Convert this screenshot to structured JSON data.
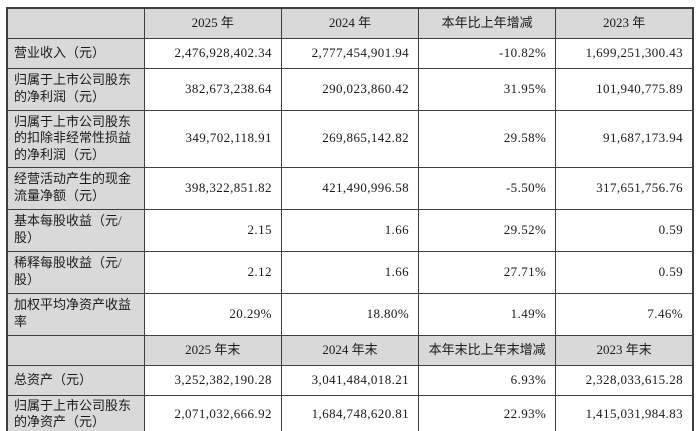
{
  "colors": {
    "header_bg": "#d9d9d9",
    "border": "#3f3f3f",
    "text": "#1a1a1a"
  },
  "table": {
    "header1": {
      "cells": [
        "2025 年",
        "2024 年",
        "本年比上年增减",
        "2023 年"
      ]
    },
    "header2": {
      "cells": [
        "2025 年末",
        "2024 年末",
        "本年末比上年末增减",
        "2023 年末"
      ]
    },
    "rows": [
      {
        "label": "营业收入（元）",
        "values": [
          "2,476,928,402.34",
          "2,777,454,901.94",
          "-10.82%",
          "1,699,251,300.43"
        ]
      },
      {
        "label": "归属于上市公司股东的净利润（元）",
        "values": [
          "382,673,238.64",
          "290,023,860.42",
          "31.95%",
          "101,940,775.89"
        ]
      },
      {
        "label": "归属于上市公司股东的扣除非经常性损益的净利润（元）",
        "values": [
          "349,702,118.91",
          "269,865,142.82",
          "29.58%",
          "91,687,173.94"
        ]
      },
      {
        "label": "经营活动产生的现金流量净额（元）",
        "values": [
          "398,322,851.82",
          "421,490,996.58",
          "-5.50%",
          "317,651,756.76"
        ]
      },
      {
        "label": "基本每股收益（元/股）",
        "values": [
          "2.15",
          "1.66",
          "29.52%",
          "0.59"
        ]
      },
      {
        "label": "稀释每股收益（元/股）",
        "values": [
          "2.12",
          "1.66",
          "27.71%",
          "0.59"
        ]
      },
      {
        "label": "加权平均净资产收益率",
        "values": [
          "20.29%",
          "18.80%",
          "1.49%",
          "7.46%"
        ]
      },
      {
        "label": "总资产（元）",
        "values": [
          "3,252,382,190.28",
          "3,041,484,018.21",
          "6.93%",
          "2,328,033,615.28"
        ]
      },
      {
        "label": "归属于上市公司股东的净资产（元）",
        "values": [
          "2,071,032,666.92",
          "1,684,748,620.81",
          "22.93%",
          "1,415,031,984.83"
        ]
      }
    ]
  }
}
